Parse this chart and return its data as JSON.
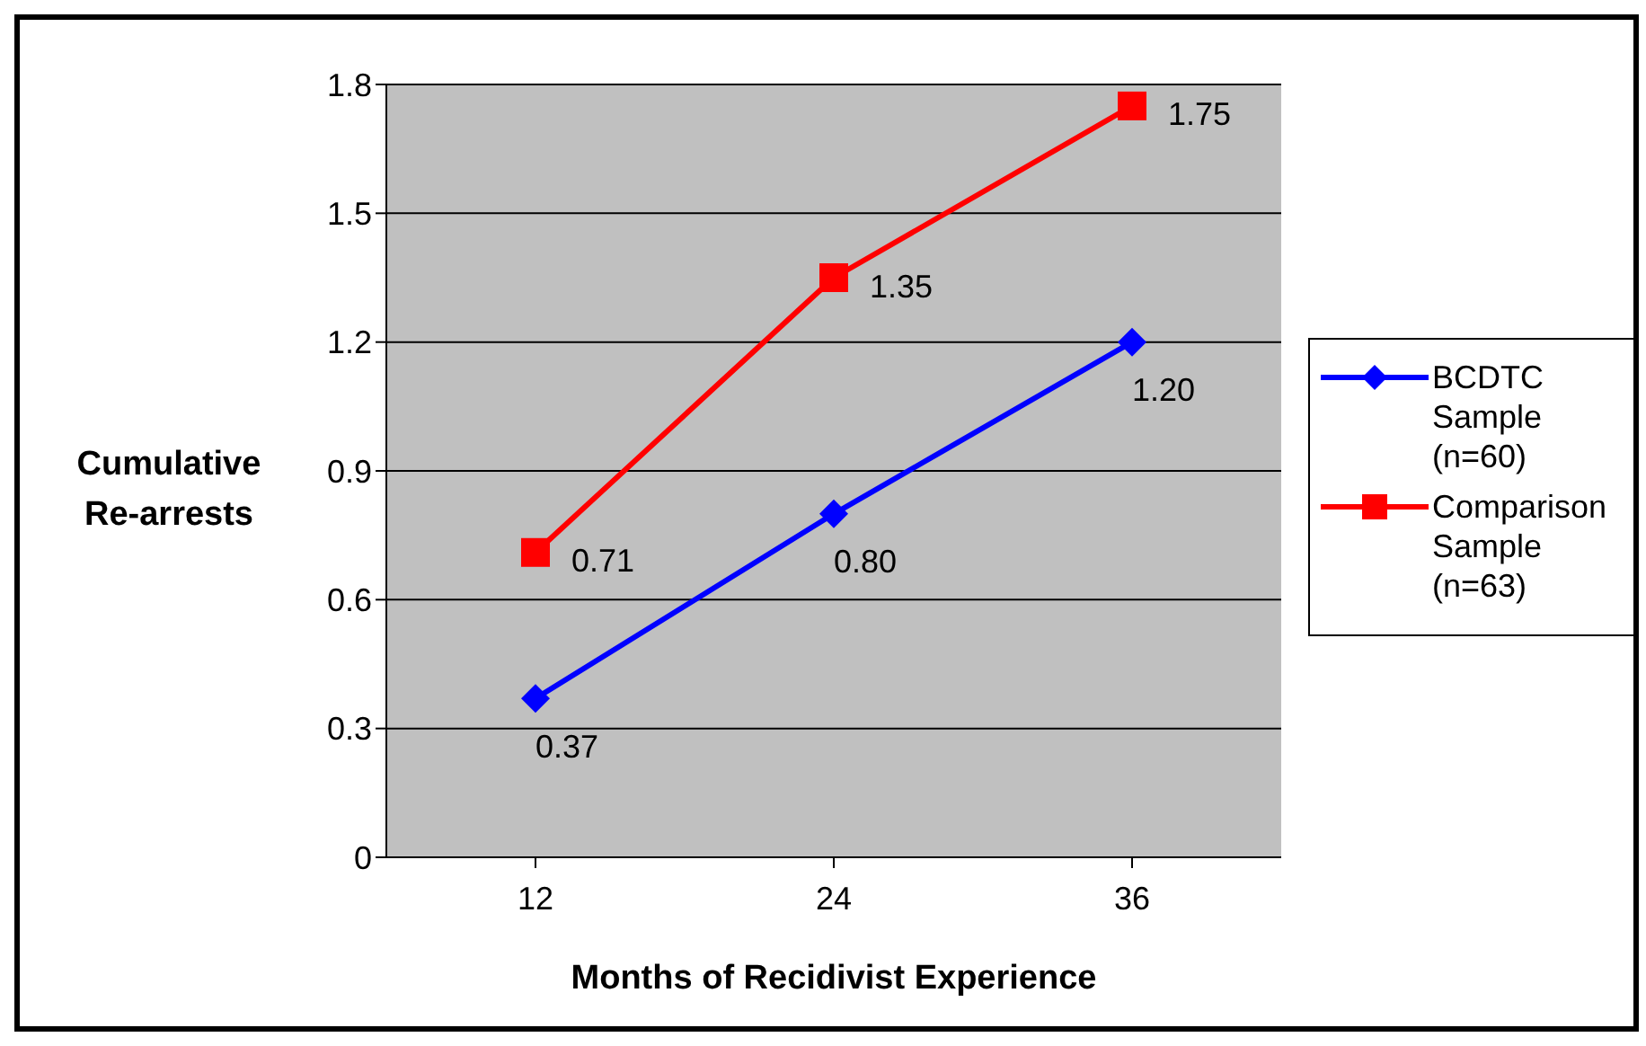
{
  "chart_data": {
    "type": "line",
    "xlabel": "Months of Recidivist Experience",
    "ylabel": "Cumulative Re-arrests",
    "categories": [
      "12",
      "24",
      "36"
    ],
    "series": [
      {
        "name": "BCDTC Sample (n=60)",
        "color": "#0000ff",
        "marker": "diamond",
        "values": [
          0.37,
          0.8,
          1.2
        ],
        "value_labels": [
          "0.37",
          "0.80",
          "1.20"
        ]
      },
      {
        "name": "Comparison Sample (n=63)",
        "color": "#ff0000",
        "marker": "square",
        "values": [
          0.71,
          1.35,
          1.75
        ],
        "value_labels": [
          "0.71",
          "1.35",
          "1.75"
        ]
      }
    ],
    "ylim": [
      0,
      1.8
    ],
    "yticks": [
      0,
      0.3,
      0.6,
      0.9,
      1.2,
      1.5,
      1.8
    ],
    "grid": "y",
    "legend": "right"
  }
}
